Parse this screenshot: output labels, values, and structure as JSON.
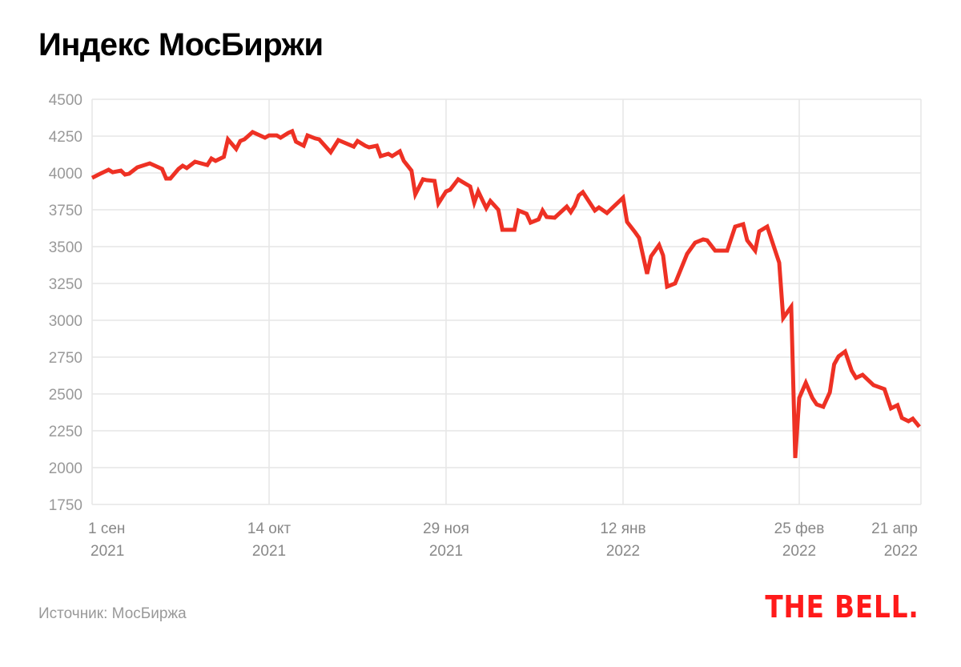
{
  "title": "Индекс МосБиржи",
  "source": "Источник: МосБиржа",
  "logo": "THE BELL.",
  "colors": {
    "line": "#ee3124",
    "grid": "#e6e6e6",
    "logo": "#ff1a1a",
    "axis_text": "#999999"
  },
  "chart_data": {
    "type": "line",
    "title": "Индекс МосБиржи",
    "xlabel": "",
    "ylabel": "",
    "ylim": [
      1750,
      4500
    ],
    "yticks": [
      1750,
      2000,
      2250,
      2500,
      2750,
      3000,
      3250,
      3500,
      3750,
      4000,
      4250,
      4500
    ],
    "grid": true,
    "xticks": [
      {
        "date": "2021-09-01",
        "line1": "1 сен",
        "line2": "2021"
      },
      {
        "date": "2021-10-14",
        "line1": "14 окт",
        "line2": "2021"
      },
      {
        "date": "2021-11-29",
        "line1": "29 ноя",
        "line2": "2021"
      },
      {
        "date": "2022-01-12",
        "line1": "12 янв",
        "line2": "2022"
      },
      {
        "date": "2022-02-25",
        "line1": "25 фев",
        "line2": "2022"
      },
      {
        "date": "2022-04-21",
        "line1": "21 апр",
        "line2": "2022"
      }
    ],
    "series": [
      {
        "points": [
          [
            "2021-09-01",
            3967
          ],
          [
            "2021-09-03",
            3995
          ],
          [
            "2021-09-05",
            4022
          ],
          [
            "2021-09-06",
            4005
          ],
          [
            "2021-09-08",
            4016
          ],
          [
            "2021-09-09",
            3989
          ],
          [
            "2021-09-10",
            3995
          ],
          [
            "2021-09-12",
            4038
          ],
          [
            "2021-09-15",
            4065
          ],
          [
            "2021-09-18",
            4027
          ],
          [
            "2021-09-19",
            3962
          ],
          [
            "2021-09-20",
            3962
          ],
          [
            "2021-09-22",
            4027
          ],
          [
            "2021-09-23",
            4049
          ],
          [
            "2021-09-24",
            4033
          ],
          [
            "2021-09-26",
            4076
          ],
          [
            "2021-09-29",
            4054
          ],
          [
            "2021-09-30",
            4098
          ],
          [
            "2021-10-01",
            4082
          ],
          [
            "2021-10-03",
            4109
          ],
          [
            "2021-10-04",
            4228
          ],
          [
            "2021-10-06",
            4163
          ],
          [
            "2021-10-07",
            4217
          ],
          [
            "2021-10-08",
            4228
          ],
          [
            "2021-10-10",
            4277
          ],
          [
            "2021-10-13",
            4239
          ],
          [
            "2021-10-14",
            4255
          ],
          [
            "2021-10-16",
            4255
          ],
          [
            "2021-10-17",
            4239
          ],
          [
            "2021-10-19",
            4272
          ],
          [
            "2021-10-20",
            4283
          ],
          [
            "2021-10-21",
            4212
          ],
          [
            "2021-10-23",
            4185
          ],
          [
            "2021-10-24",
            4255
          ],
          [
            "2021-10-26",
            4234
          ],
          [
            "2021-10-27",
            4228
          ],
          [
            "2021-10-30",
            4141
          ],
          [
            "2021-11-01",
            4223
          ],
          [
            "2021-11-02",
            4212
          ],
          [
            "2021-11-05",
            4179
          ],
          [
            "2021-11-06",
            4217
          ],
          [
            "2021-11-08",
            4185
          ],
          [
            "2021-11-09",
            4174
          ],
          [
            "2021-11-11",
            4185
          ],
          [
            "2021-11-12",
            4114
          ],
          [
            "2021-11-14",
            4130
          ],
          [
            "2021-11-15",
            4114
          ],
          [
            "2021-11-17",
            4147
          ],
          [
            "2021-11-18",
            4082
          ],
          [
            "2021-11-20",
            4016
          ],
          [
            "2021-11-21",
            3855
          ],
          [
            "2021-11-23",
            3957
          ],
          [
            "2021-11-24",
            3951
          ],
          [
            "2021-11-26",
            3946
          ],
          [
            "2021-11-27",
            3793
          ],
          [
            "2021-11-29",
            3875
          ],
          [
            "2021-11-30",
            3886
          ],
          [
            "2021-12-02",
            3957
          ],
          [
            "2021-12-03",
            3940
          ],
          [
            "2021-12-05",
            3908
          ],
          [
            "2021-12-06",
            3799
          ],
          [
            "2021-12-07",
            3875
          ],
          [
            "2021-12-09",
            3761
          ],
          [
            "2021-12-10",
            3810
          ],
          [
            "2021-12-12",
            3750
          ],
          [
            "2021-12-13",
            3614
          ],
          [
            "2021-12-16",
            3614
          ],
          [
            "2021-12-17",
            3745
          ],
          [
            "2021-12-19",
            3723
          ],
          [
            "2021-12-20",
            3663
          ],
          [
            "2021-12-22",
            3685
          ],
          [
            "2021-12-23",
            3745
          ],
          [
            "2021-12-24",
            3701
          ],
          [
            "2021-12-26",
            3696
          ],
          [
            "2021-12-29",
            3772
          ],
          [
            "2021-12-30",
            3734
          ],
          [
            "2021-12-31",
            3777
          ],
          [
            "2022-01-01",
            3848
          ],
          [
            "2022-01-02",
            3870
          ],
          [
            "2022-01-05",
            3745
          ],
          [
            "2022-01-06",
            3766
          ],
          [
            "2022-01-08",
            3728
          ],
          [
            "2022-01-12",
            3832
          ],
          [
            "2022-01-13",
            3668
          ],
          [
            "2022-01-15",
            3598
          ],
          [
            "2022-01-16",
            3560
          ],
          [
            "2022-01-18",
            3315
          ],
          [
            "2022-01-19",
            3435
          ],
          [
            "2022-01-21",
            3511
          ],
          [
            "2022-01-22",
            3440
          ],
          [
            "2022-01-23",
            3228
          ],
          [
            "2022-01-25",
            3250
          ],
          [
            "2022-01-28",
            3451
          ],
          [
            "2022-01-30",
            3527
          ],
          [
            "2022-02-01",
            3549
          ],
          [
            "2022-02-02",
            3543
          ],
          [
            "2022-02-04",
            3473
          ],
          [
            "2022-02-07",
            3473
          ],
          [
            "2022-02-09",
            3636
          ],
          [
            "2022-02-11",
            3652
          ],
          [
            "2022-02-12",
            3543
          ],
          [
            "2022-02-14",
            3473
          ],
          [
            "2022-02-15",
            3603
          ],
          [
            "2022-02-17",
            3636
          ],
          [
            "2022-02-20",
            3391
          ],
          [
            "2022-02-21",
            3016
          ],
          [
            "2022-02-23",
            3092
          ],
          [
            "2022-02-24",
            2065
          ],
          [
            "2022-02-25",
            2473
          ],
          [
            "2022-02-28",
            2576
          ],
          [
            "2022-03-03",
            2473
          ],
          [
            "2022-03-05",
            2429
          ],
          [
            "2022-03-08",
            2413
          ],
          [
            "2022-03-11",
            2511
          ],
          [
            "2022-03-13",
            2701
          ],
          [
            "2022-03-15",
            2755
          ],
          [
            "2022-03-18",
            2788
          ],
          [
            "2022-03-21",
            2658
          ],
          [
            "2022-03-23",
            2609
          ],
          [
            "2022-03-26",
            2630
          ],
          [
            "2022-03-31",
            2560
          ],
          [
            "2022-04-05",
            2533
          ],
          [
            "2022-04-08",
            2402
          ],
          [
            "2022-04-11",
            2424
          ],
          [
            "2022-04-13",
            2337
          ],
          [
            "2022-04-16",
            2315
          ],
          [
            "2022-04-18",
            2332
          ],
          [
            "2022-04-21",
            2277
          ]
        ]
      }
    ]
  }
}
